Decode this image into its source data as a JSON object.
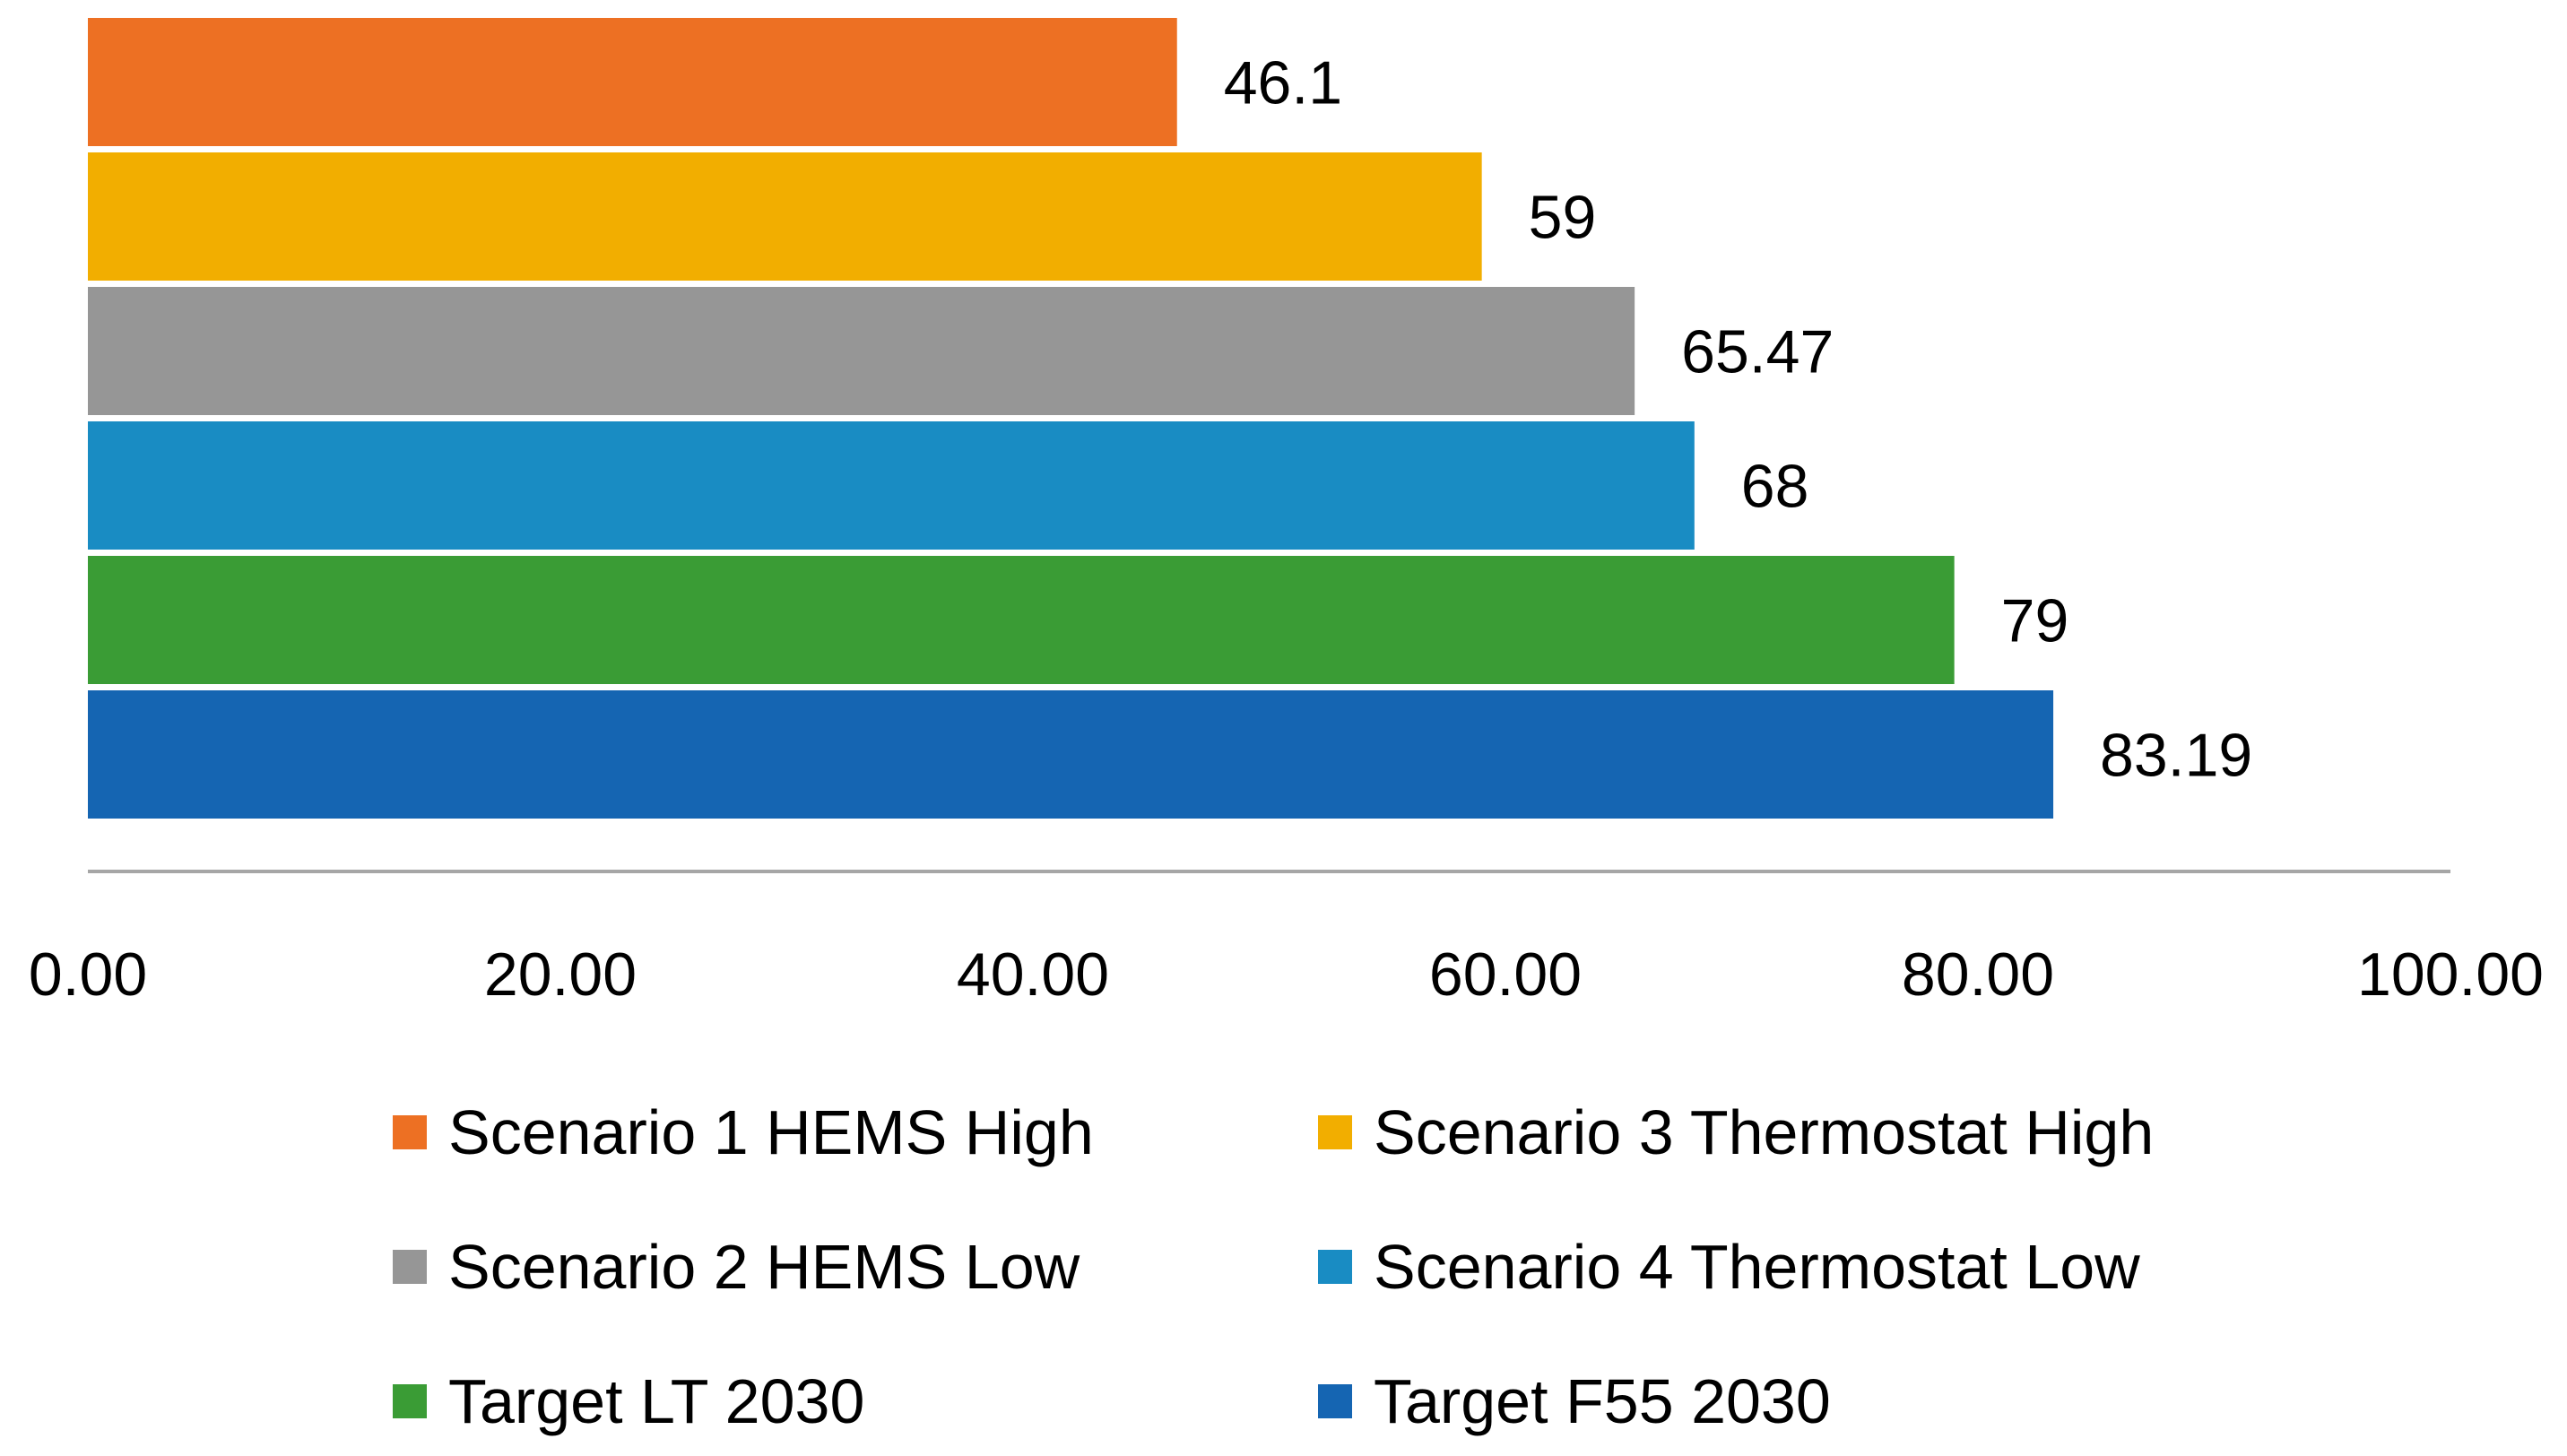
{
  "chart_data": {
    "type": "bar",
    "orientation": "horizontal",
    "title": "",
    "xlabel": "",
    "ylabel": "",
    "xlim": [
      0,
      100
    ],
    "ticks": [
      "0.00",
      "20.00",
      "40.00",
      "60.00",
      "80.00",
      "100.00"
    ],
    "tick_values": [
      0,
      20,
      40,
      60,
      80,
      100
    ],
    "grid": false,
    "legend_position": "bottom",
    "series": [
      {
        "name": "Scenario 1 HEMS High",
        "value": 46.1,
        "label": "46.1",
        "color": "#ED7023"
      },
      {
        "name": "Scenario 3 Thermostat High",
        "value": 59,
        "label": "59",
        "color": "#F2AE00"
      },
      {
        "name": "Scenario 2 HEMS Low",
        "value": 65.47,
        "label": "65.47",
        "color": "#969696"
      },
      {
        "name": "Scenario 4 Thermostat Low",
        "value": 68,
        "label": "68",
        "color": "#198CC3"
      },
      {
        "name": "Target LT 2030",
        "value": 79,
        "label": "79",
        "color": "#3A9C35"
      },
      {
        "name": "Target F55 2030",
        "value": 83.19,
        "label": "83.19",
        "color": "#1565B2"
      }
    ],
    "legend": [
      {
        "name": "Scenario 1 HEMS High",
        "color": "#ED7023"
      },
      {
        "name": "Scenario 3 Thermostat High",
        "color": "#F2AE00"
      },
      {
        "name": "Scenario 2 HEMS Low",
        "color": "#969696"
      },
      {
        "name": "Scenario 4 Thermostat Low",
        "color": "#198CC3"
      },
      {
        "name": "Target LT 2030",
        "color": "#3A9C35"
      },
      {
        "name": "Target F55 2030",
        "color": "#1565B2"
      }
    ]
  }
}
